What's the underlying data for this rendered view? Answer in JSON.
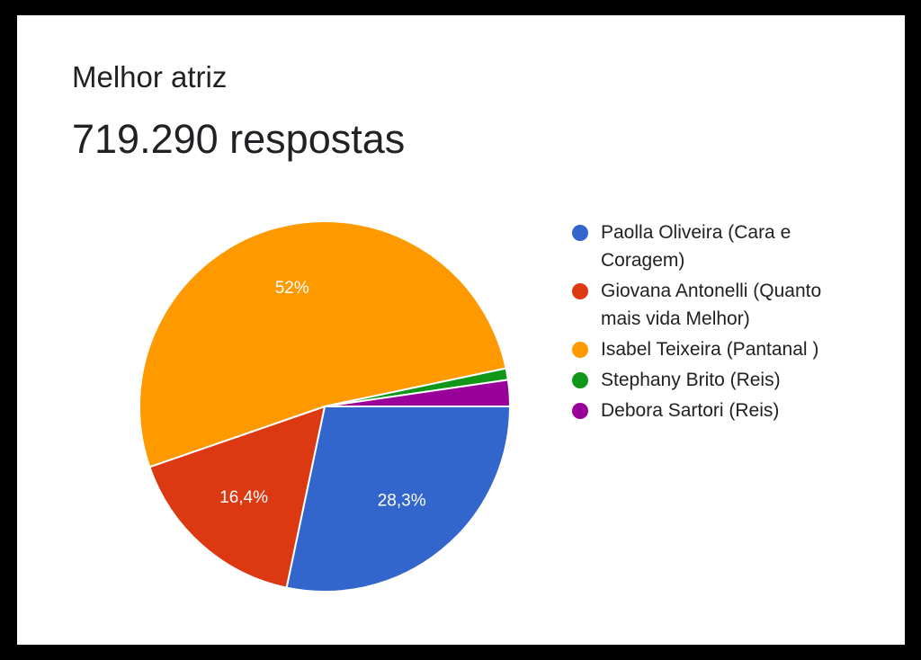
{
  "header": {
    "title": "Melhor atriz",
    "responses": "719.290 respostas"
  },
  "chart_data": {
    "type": "pie",
    "title": "Melhor atriz",
    "legend_position": "right",
    "slices": [
      {
        "name": "Paolla Oliveira (Cara e Coragem)",
        "value": 28.3,
        "label": "28,3%",
        "color": "#3366cc"
      },
      {
        "name": "Giovana Antonelli (Quanto mais vida Melhor)",
        "value": 16.4,
        "label": "16,4%",
        "color": "#dc3912"
      },
      {
        "name": "Isabel Teixeira (Pantanal )",
        "value": 52,
        "label": "52%",
        "color": "#ff9900"
      },
      {
        "name": "Stephany Brito (Reis)",
        "value": 1.0,
        "label": "",
        "color": "#109618"
      },
      {
        "name": "Debora Sartori (Reis)",
        "value": 2.3,
        "label": "",
        "color": "#990099"
      }
    ]
  }
}
